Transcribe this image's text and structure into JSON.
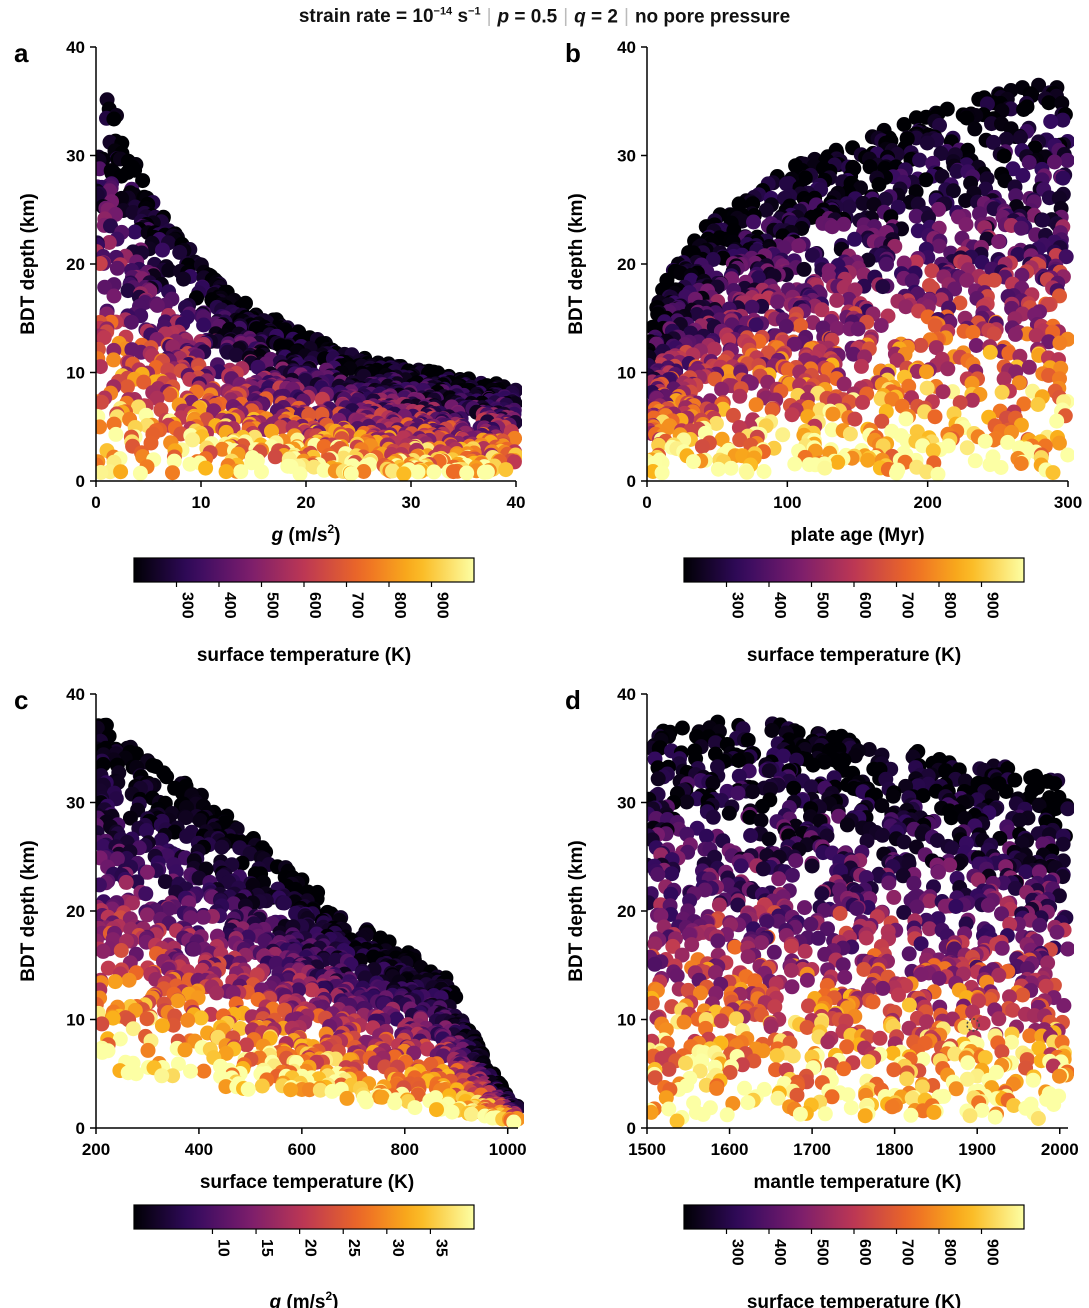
{
  "header": {
    "strain_prefix": "strain rate = 10",
    "strain_exp": "−14",
    "strain_unit": " s",
    "strain_unit_exp": "−1",
    "p_label": "p",
    "p_value": " = 0.5",
    "q_label": "q",
    "q_value": " = 2",
    "pore": "no pore pressure"
  },
  "colormap": {
    "name": "inferno",
    "stops": [
      "#000004",
      "#320a5e",
      "#781c6d",
      "#bc3754",
      "#ed6925",
      "#fbb61a",
      "#fcffa4"
    ]
  },
  "chart_data": [
    {
      "type": "scatter",
      "panel": "a",
      "xlabel_italic": "g",
      "xlabel_rest": " (m/s",
      "xlabel_sup": "2",
      "xlabel_end": ")",
      "ylabel": "BDT depth (km)",
      "xlim": [
        0,
        40
      ],
      "ylim": [
        0,
        40
      ],
      "xticks": [
        0,
        10,
        20,
        30,
        40
      ],
      "yticks": [
        0,
        10,
        20,
        30,
        40
      ],
      "xtick_labels": [
        "0",
        "10",
        "20",
        "30",
        "40"
      ],
      "ytick_labels": [
        "0",
        "10",
        "20",
        "30",
        "40"
      ],
      "envelope": [
        [
          0,
          38
        ],
        [
          2,
          34
        ],
        [
          5,
          27
        ],
        [
          10,
          20
        ],
        [
          15,
          16
        ],
        [
          20,
          13.5
        ],
        [
          25,
          11.5
        ],
        [
          30,
          10.5
        ],
        [
          35,
          9.5
        ],
        [
          40,
          8.8
        ]
      ],
      "colorbar": {
        "label": "surface temperature (K)",
        "range": [
          200,
          1000
        ],
        "ticks": [
          300,
          400,
          500,
          600,
          700,
          800,
          900
        ],
        "tick_labels": [
          "300",
          "400",
          "500",
          "600",
          "700",
          "800",
          "900"
        ]
      }
    },
    {
      "type": "scatter",
      "panel": "b",
      "xlabel": "plate age (Myr)",
      "ylabel": "BDT depth (km)",
      "xlim": [
        0,
        300
      ],
      "ylim": [
        0,
        40
      ],
      "xticks": [
        0,
        100,
        200,
        300
      ],
      "yticks": [
        0,
        10,
        20,
        30,
        40
      ],
      "xtick_labels": [
        "0",
        "100",
        "200",
        "300"
      ],
      "ytick_labels": [
        "0",
        "10",
        "20",
        "30",
        "40"
      ],
      "envelope": [
        [
          0,
          12
        ],
        [
          10,
          18
        ],
        [
          30,
          22
        ],
        [
          60,
          26
        ],
        [
          100,
          29
        ],
        [
          150,
          31.5
        ],
        [
          200,
          34
        ],
        [
          250,
          36
        ],
        [
          300,
          37
        ]
      ],
      "colorbar": {
        "label": "surface temperature (K)",
        "range": [
          200,
          1000
        ],
        "ticks": [
          300,
          400,
          500,
          600,
          700,
          800,
          900
        ],
        "tick_labels": [
          "300",
          "400",
          "500",
          "600",
          "700",
          "800",
          "900"
        ]
      }
    },
    {
      "type": "scatter",
      "panel": "c",
      "xlabel": "surface temperature (K)",
      "ylabel": "BDT depth (km)",
      "xlim": [
        200,
        1020
      ],
      "ylim": [
        0,
        40
      ],
      "xticks": [
        200,
        400,
        600,
        800,
        1000
      ],
      "yticks": [
        0,
        10,
        20,
        30,
        40
      ],
      "xtick_labels": [
        "200",
        "400",
        "600",
        "800",
        "1000"
      ],
      "ytick_labels": [
        "0",
        "10",
        "20",
        "30",
        "40"
      ],
      "envelope": [
        [
          200,
          38
        ],
        [
          300,
          34
        ],
        [
          400,
          31
        ],
        [
          500,
          27
        ],
        [
          600,
          23
        ],
        [
          700,
          19
        ],
        [
          800,
          16.5
        ],
        [
          880,
          14
        ],
        [
          920,
          10
        ],
        [
          960,
          6
        ],
        [
          1000,
          3
        ],
        [
          1015,
          2
        ]
      ],
      "floor": [
        [
          200,
          5
        ],
        [
          400,
          4
        ],
        [
          600,
          3
        ],
        [
          800,
          2
        ],
        [
          950,
          1
        ],
        [
          1015,
          0.5
        ]
      ],
      "colorbar": {
        "label_italic": "g",
        "label_rest": " (m/s",
        "label_sup": "2",
        "label_end": ")",
        "range": [
          1,
          40
        ],
        "ticks": [
          10,
          15,
          20,
          25,
          30,
          35
        ],
        "tick_labels": [
          "10",
          "15",
          "20",
          "25",
          "30",
          "35"
        ]
      }
    },
    {
      "type": "scatter",
      "panel": "d",
      "xlabel": "mantle temperature (K)",
      "ylabel": "BDT depth (km)",
      "xlim": [
        1500,
        2010
      ],
      "ylim": [
        0,
        40
      ],
      "xticks": [
        1500,
        1600,
        1700,
        1800,
        1900,
        2000
      ],
      "yticks": [
        0,
        10,
        20,
        30,
        40
      ],
      "xtick_labels": [
        "1500",
        "1600",
        "1700",
        "1800",
        "1900",
        "2000"
      ],
      "ytick_labels": [
        "0",
        "10",
        "20",
        "30",
        "40"
      ],
      "envelope": [
        [
          1500,
          37
        ],
        [
          1600,
          37.5
        ],
        [
          1700,
          37
        ],
        [
          1800,
          35
        ],
        [
          1900,
          34
        ],
        [
          2000,
          32
        ],
        [
          2010,
          31
        ]
      ],
      "marker_point": {
        "x": 1895,
        "y": 9.5
      },
      "colorbar": {
        "label": "surface temperature (K)",
        "range": [
          200,
          1000
        ],
        "ticks": [
          300,
          400,
          500,
          600,
          700,
          800,
          900
        ],
        "tick_labels": [
          "300",
          "400",
          "500",
          "600",
          "700",
          "800",
          "900"
        ]
      }
    }
  ]
}
